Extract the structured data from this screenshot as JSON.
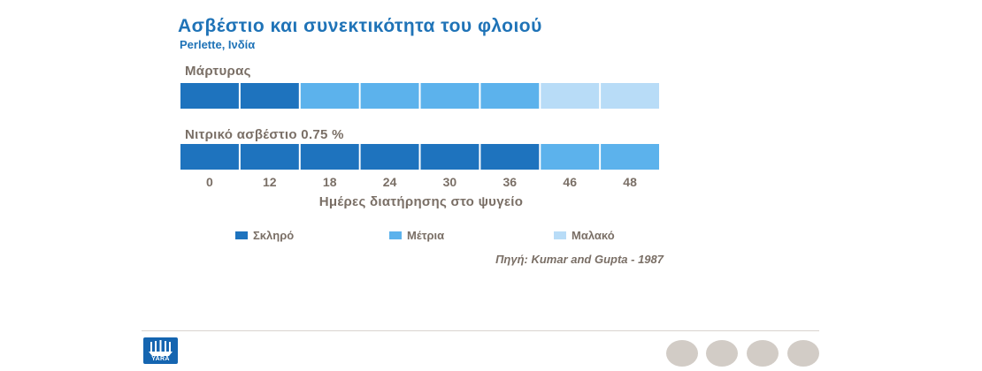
{
  "header": {
    "title": "Ασβέστιο και συνεκτικότητα του φλοιού",
    "subtitle": "Perlette, Ινδία"
  },
  "chart_data": {
    "type": "table",
    "title": "Ασβέστιο και συνεκτικότητα του φλοιού",
    "subtitle": "Perlette, Ινδία",
    "xlabel": "Ημέρες διατήρησης στο ψυγείο",
    "categories": [
      "0",
      "12",
      "18",
      "24",
      "30",
      "36",
      "46",
      "48"
    ],
    "rows": [
      {
        "name": "Μάρτυρας",
        "values": [
          "Σκληρό",
          "Σκληρό",
          "Μέτρια",
          "Μέτρια",
          "Μέτρια",
          "Μέτρια",
          "Μαλακό",
          "Μαλακό"
        ]
      },
      {
        "name": "Νιτρικό ασβέστιο 0.75 %",
        "values": [
          "Σκληρό",
          "Σκληρό",
          "Σκληρό",
          "Σκληρό",
          "Σκληρό",
          "Σκληρό",
          "Μέτρια",
          "Μέτρια"
        ]
      }
    ],
    "legend": [
      {
        "label": "Σκληρό",
        "color": "#1e73be"
      },
      {
        "label": "Μέτρια",
        "color": "#5cb2ec"
      },
      {
        "label": "Μαλακό",
        "color": "#b8dcf7"
      }
    ],
    "source": "Πηγή: Kumar and Gupta - 1987"
  },
  "footer": {
    "logo_text": "YARA"
  }
}
